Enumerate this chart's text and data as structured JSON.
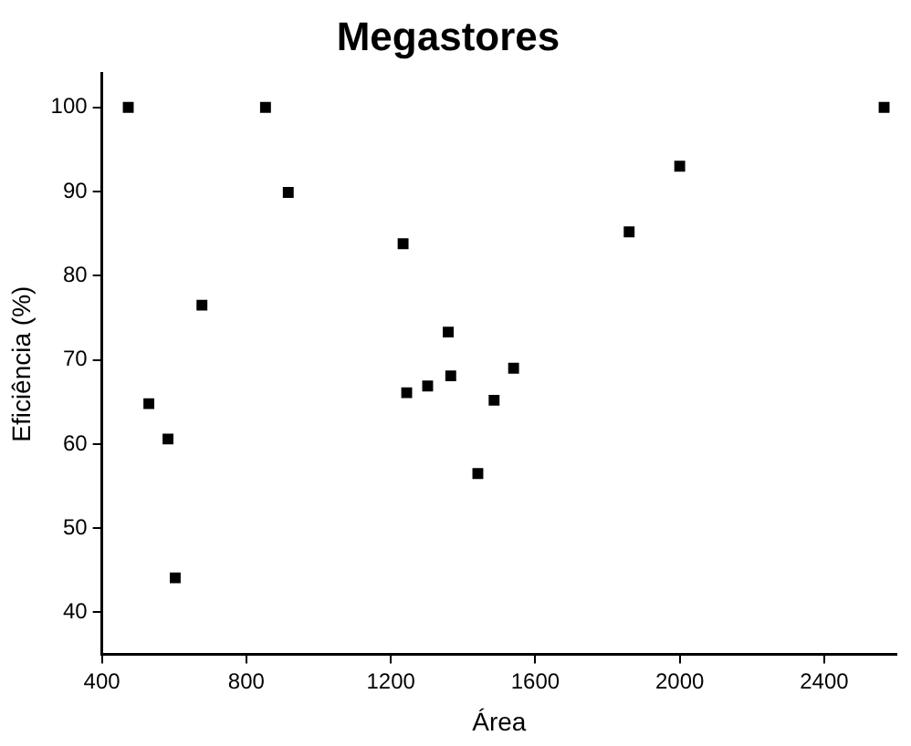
{
  "chart_data": {
    "type": "scatter",
    "title": "Megastores",
    "xlabel": "Área",
    "ylabel": "Eficiência (%)",
    "marker": "square",
    "x": [
      473,
      530,
      583,
      603,
      677,
      853,
      916,
      1234,
      1244,
      1302,
      1359,
      1366,
      1441,
      1486,
      1540,
      1860,
      2000,
      2566
    ],
    "series": [
      {
        "color": "#000000",
        "values": [
          100,
          64.8,
          60.6,
          44.1,
          76.5,
          100,
          89.9,
          83.8,
          66.1,
          66.9,
          73.3,
          68.1,
          56.5,
          65.2,
          69.0,
          85.2,
          93.0,
          100
        ]
      }
    ],
    "xlim": [
      400,
      2600
    ],
    "xticks": [
      400,
      800,
      1200,
      1600,
      2000,
      2400
    ],
    "ylim": [
      35,
      104
    ],
    "yticks": [
      40,
      50,
      60,
      70,
      80,
      90,
      100
    ]
  }
}
